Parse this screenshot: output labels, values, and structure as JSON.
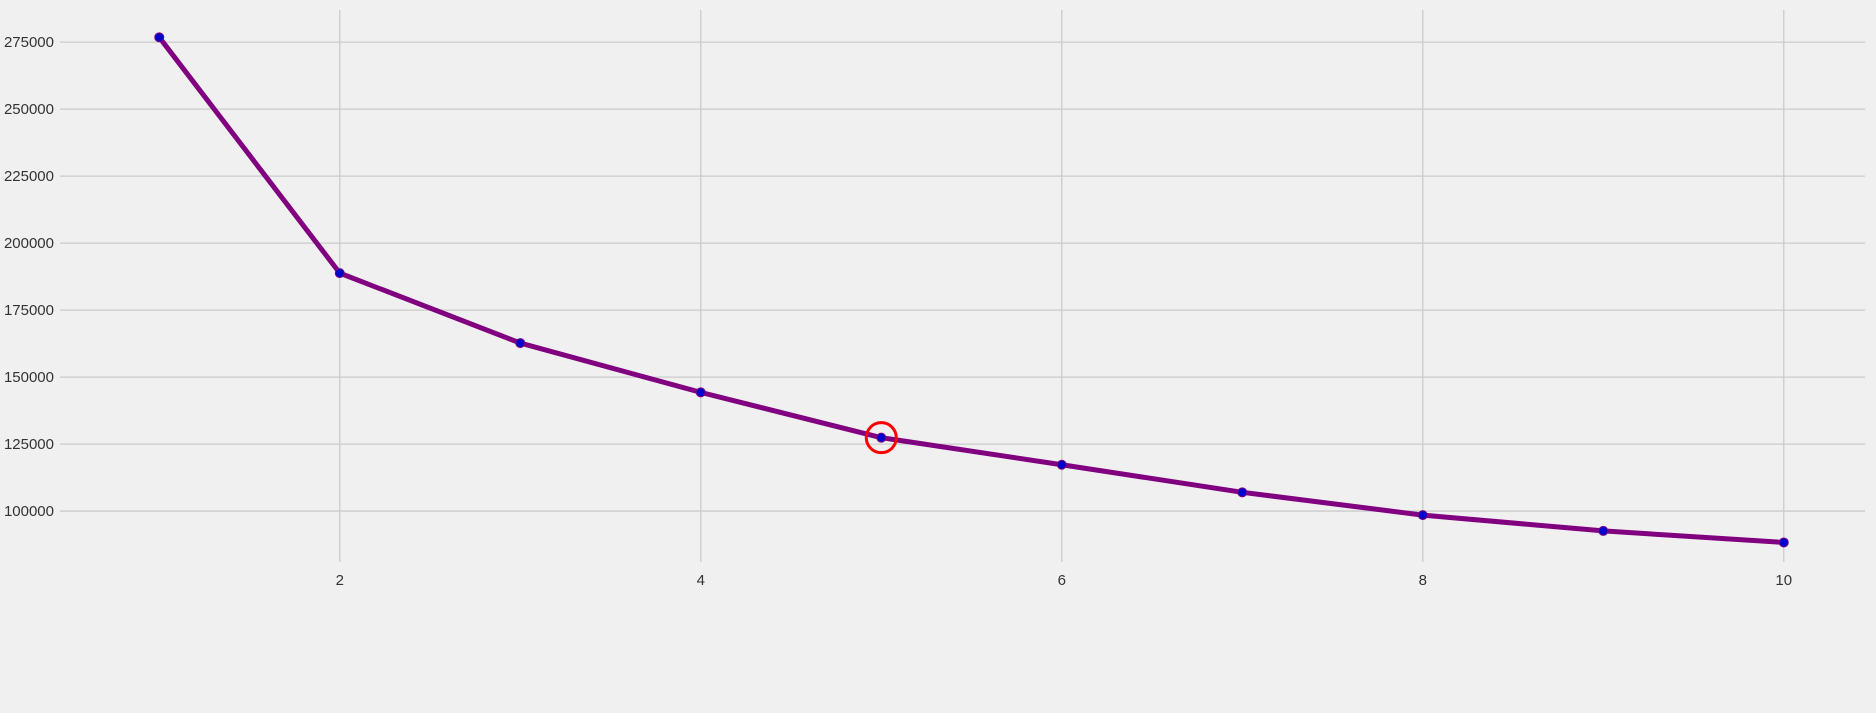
{
  "chart_data": {
    "type": "line",
    "title": "",
    "xlabel": "",
    "ylabel": "",
    "x": [
      1,
      2,
      3,
      4,
      5,
      6,
      7,
      8,
      9,
      10
    ],
    "series": [
      {
        "values": [
          276800,
          188800,
          162700,
          144300,
          127400,
          117300,
          107000,
          98500,
          92600,
          88300
        ]
      }
    ],
    "xticks": [
      2,
      4,
      6,
      8,
      10
    ],
    "yticks": [
      100000,
      125000,
      150000,
      175000,
      200000,
      225000,
      250000,
      275000
    ],
    "xlim": [
      0.45,
      10.45
    ],
    "ylim": [
      81000,
      287000
    ],
    "grid": true,
    "highlight": {
      "x": 5,
      "y": 127400
    },
    "colors": {
      "background": "#f0f0f0",
      "grid": "#cbcbcb",
      "line": "#800080",
      "marker": "#0000cd",
      "highlight": "#ff0000"
    }
  }
}
